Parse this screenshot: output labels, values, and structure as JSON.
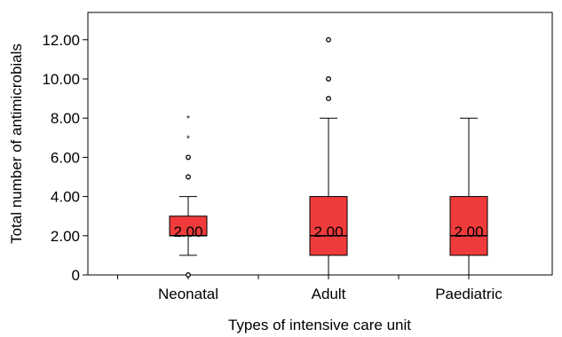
{
  "chart_data": {
    "type": "boxplot",
    "title": "",
    "xlabel": "Types of intensive care unit",
    "ylabel": "Total number of antimicrobials",
    "ylim": [
      0,
      13
    ],
    "yticks": [
      "0",
      "2.00",
      "4.00",
      "6.00",
      "8.00",
      "10.00",
      "12.00"
    ],
    "ytick_values": [
      0,
      2,
      4,
      6,
      8,
      10,
      12
    ],
    "grid": false,
    "box_color": "#ef3b3b",
    "categories": [
      "Neonatal",
      "Adult",
      "Paediatric"
    ],
    "boxes": [
      {
        "category": "Neonatal",
        "whisker_low": 1,
        "q1": 2,
        "median": 2,
        "q3": 3,
        "whisker_high": 4,
        "median_label": "2.00",
        "outliers": [
          {
            "value": 0,
            "marker": "circle"
          },
          {
            "value": 5,
            "marker": "circle"
          },
          {
            "value": 6,
            "marker": "circle"
          },
          {
            "value": 7,
            "marker": "star"
          },
          {
            "value": 8,
            "marker": "star"
          }
        ]
      },
      {
        "category": "Adult",
        "whisker_low": 0,
        "q1": 1,
        "median": 2,
        "q3": 4,
        "whisker_high": 8,
        "median_label": "2.00",
        "outliers": [
          {
            "value": 9,
            "marker": "circle"
          },
          {
            "value": 10,
            "marker": "circle"
          },
          {
            "value": 12,
            "marker": "circle"
          }
        ]
      },
      {
        "category": "Paediatric",
        "whisker_low": 0,
        "q1": 1,
        "median": 2,
        "q3": 4,
        "whisker_high": 8,
        "median_label": "2.00",
        "outliers": []
      }
    ]
  }
}
